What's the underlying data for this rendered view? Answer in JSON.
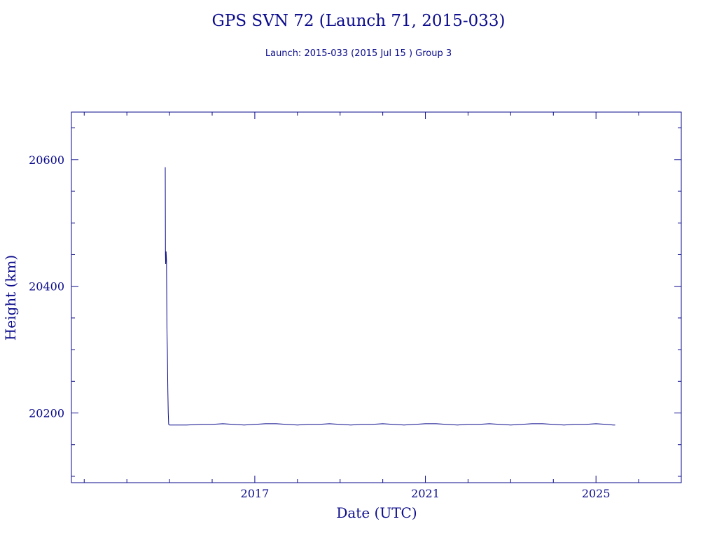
{
  "chart_data": {
    "type": "line",
    "title": "GPS SVN 72 (Launch 71, 2015-033)",
    "subtitle": "Launch: 2015-033  (2015 Jul 15 )  Group 3",
    "xlabel": "Date (UTC)",
    "ylabel": "Height (km)",
    "xlim": [
      2012.7,
      2027.0
    ],
    "ylim": [
      20090,
      20675
    ],
    "x_ticks": [
      2017,
      2021,
      2025
    ],
    "x_minor_ticks": [
      2013,
      2014,
      2015,
      2016,
      2018,
      2019,
      2020,
      2022,
      2023,
      2024,
      2026
    ],
    "y_ticks": [
      20200,
      20400,
      20600
    ],
    "y_minor_ticks": [
      20100,
      20150,
      20250,
      20300,
      20350,
      20450,
      20500,
      20550,
      20650
    ],
    "grid": false,
    "color": "#0a0a8c",
    "series": [
      {
        "x": [
          2014.9,
          2014.905,
          2014.91,
          2014.92,
          2014.93,
          2014.94,
          2014.95,
          2014.96,
          2014.97,
          2014.98,
          2015.0,
          2015.4,
          2015.75,
          2016.0,
          2016.25,
          2016.5,
          2016.75,
          2017.0,
          2017.25,
          2017.5,
          2017.75,
          2018.0,
          2018.25,
          2018.5,
          2018.75,
          2019.0,
          2019.25,
          2019.5,
          2019.75,
          2020.0,
          2020.25,
          2020.5,
          2020.75,
          2021.0,
          2021.25,
          2021.5,
          2021.75,
          2022.0,
          2022.25,
          2022.5,
          2022.75,
          2023.0,
          2023.25,
          2023.5,
          2023.75,
          2024.0,
          2024.25,
          2024.5,
          2024.75,
          2025.0,
          2025.25,
          2025.4,
          2025.45
        ],
        "y": [
          20588,
          20450,
          20435,
          20455,
          20440,
          20335,
          20300,
          20235,
          20200,
          20182,
          20181,
          20181,
          20182,
          20182,
          20183,
          20182,
          20181,
          20182,
          20183,
          20183,
          20182,
          20181,
          20182,
          20182,
          20183,
          20182,
          20181,
          20182,
          20182,
          20183,
          20182,
          20181,
          20182,
          20183,
          20183,
          20182,
          20181,
          20182,
          20182,
          20183,
          20182,
          20181,
          20182,
          20183,
          20183,
          20182,
          20181,
          20182,
          20182,
          20183,
          20182,
          20181,
          20181
        ]
      }
    ]
  }
}
